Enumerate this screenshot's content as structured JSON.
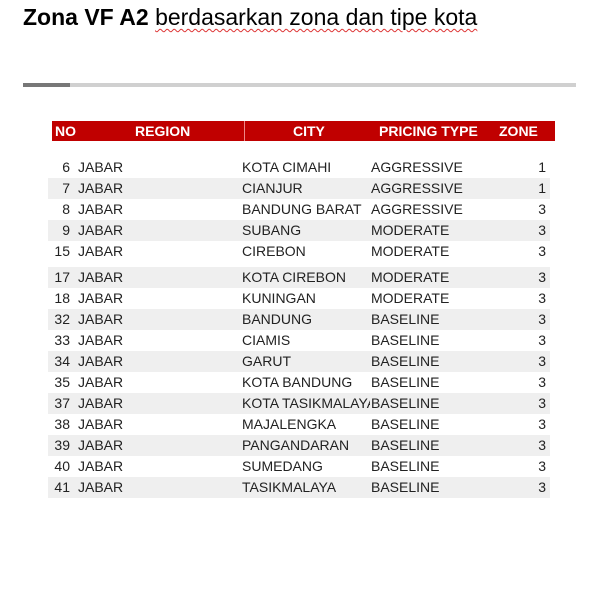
{
  "title": {
    "bold": "Zona VF A2",
    "rest": "berdasarkan zona dan tipe kota"
  },
  "table": {
    "headers": {
      "no": "NO",
      "region": "REGION",
      "city": "CITY",
      "pricing": "PRICING TYPE",
      "zone": "ZONE"
    },
    "header_color": "#c00000",
    "rows": [
      {
        "no": "6",
        "region": "JABAR",
        "city": "KOTA CIMAHI",
        "pricing": "AGGRESSIVE",
        "zone": "1"
      },
      {
        "no": "7",
        "region": "JABAR",
        "city": "CIANJUR",
        "pricing": "AGGRESSIVE",
        "zone": "1"
      },
      {
        "no": "8",
        "region": "JABAR",
        "city": "BANDUNG BARAT",
        "pricing": "AGGRESSIVE",
        "zone": "3"
      },
      {
        "no": "9",
        "region": "JABAR",
        "city": "SUBANG",
        "pricing": "MODERATE",
        "zone": "3"
      },
      {
        "no": "15",
        "region": "JABAR",
        "city": "CIREBON",
        "pricing": "MODERATE",
        "zone": "3"
      },
      {
        "no": "17",
        "region": "JABAR",
        "city": "KOTA CIREBON",
        "pricing": "MODERATE",
        "zone": "3"
      },
      {
        "no": "18",
        "region": "JABAR",
        "city": "KUNINGAN",
        "pricing": "MODERATE",
        "zone": "3"
      },
      {
        "no": "32",
        "region": "JABAR",
        "city": "BANDUNG",
        "pricing": "BASELINE",
        "zone": "3"
      },
      {
        "no": "33",
        "region": "JABAR",
        "city": "CIAMIS",
        "pricing": "BASELINE",
        "zone": "3"
      },
      {
        "no": "34",
        "region": "JABAR",
        "city": "GARUT",
        "pricing": "BASELINE",
        "zone": "3"
      },
      {
        "no": "35",
        "region": "JABAR",
        "city": "KOTA BANDUNG",
        "pricing": "BASELINE",
        "zone": "3"
      },
      {
        "no": "37",
        "region": "JABAR",
        "city": "KOTA TASIKMALAYA",
        "pricing": "BASELINE",
        "zone": "3"
      },
      {
        "no": "38",
        "region": "JABAR",
        "city": "MAJALENGKA",
        "pricing": "BASELINE",
        "zone": "3"
      },
      {
        "no": "39",
        "region": "JABAR",
        "city": "PANGANDARAN",
        "pricing": "BASELINE",
        "zone": "3"
      },
      {
        "no": "40",
        "region": "JABAR",
        "city": "SUMEDANG",
        "pricing": "BASELINE",
        "zone": "3"
      },
      {
        "no": "41",
        "region": "JABAR",
        "city": "TASIKMALAYA",
        "pricing": "BASELINE",
        "zone": "3"
      }
    ]
  }
}
